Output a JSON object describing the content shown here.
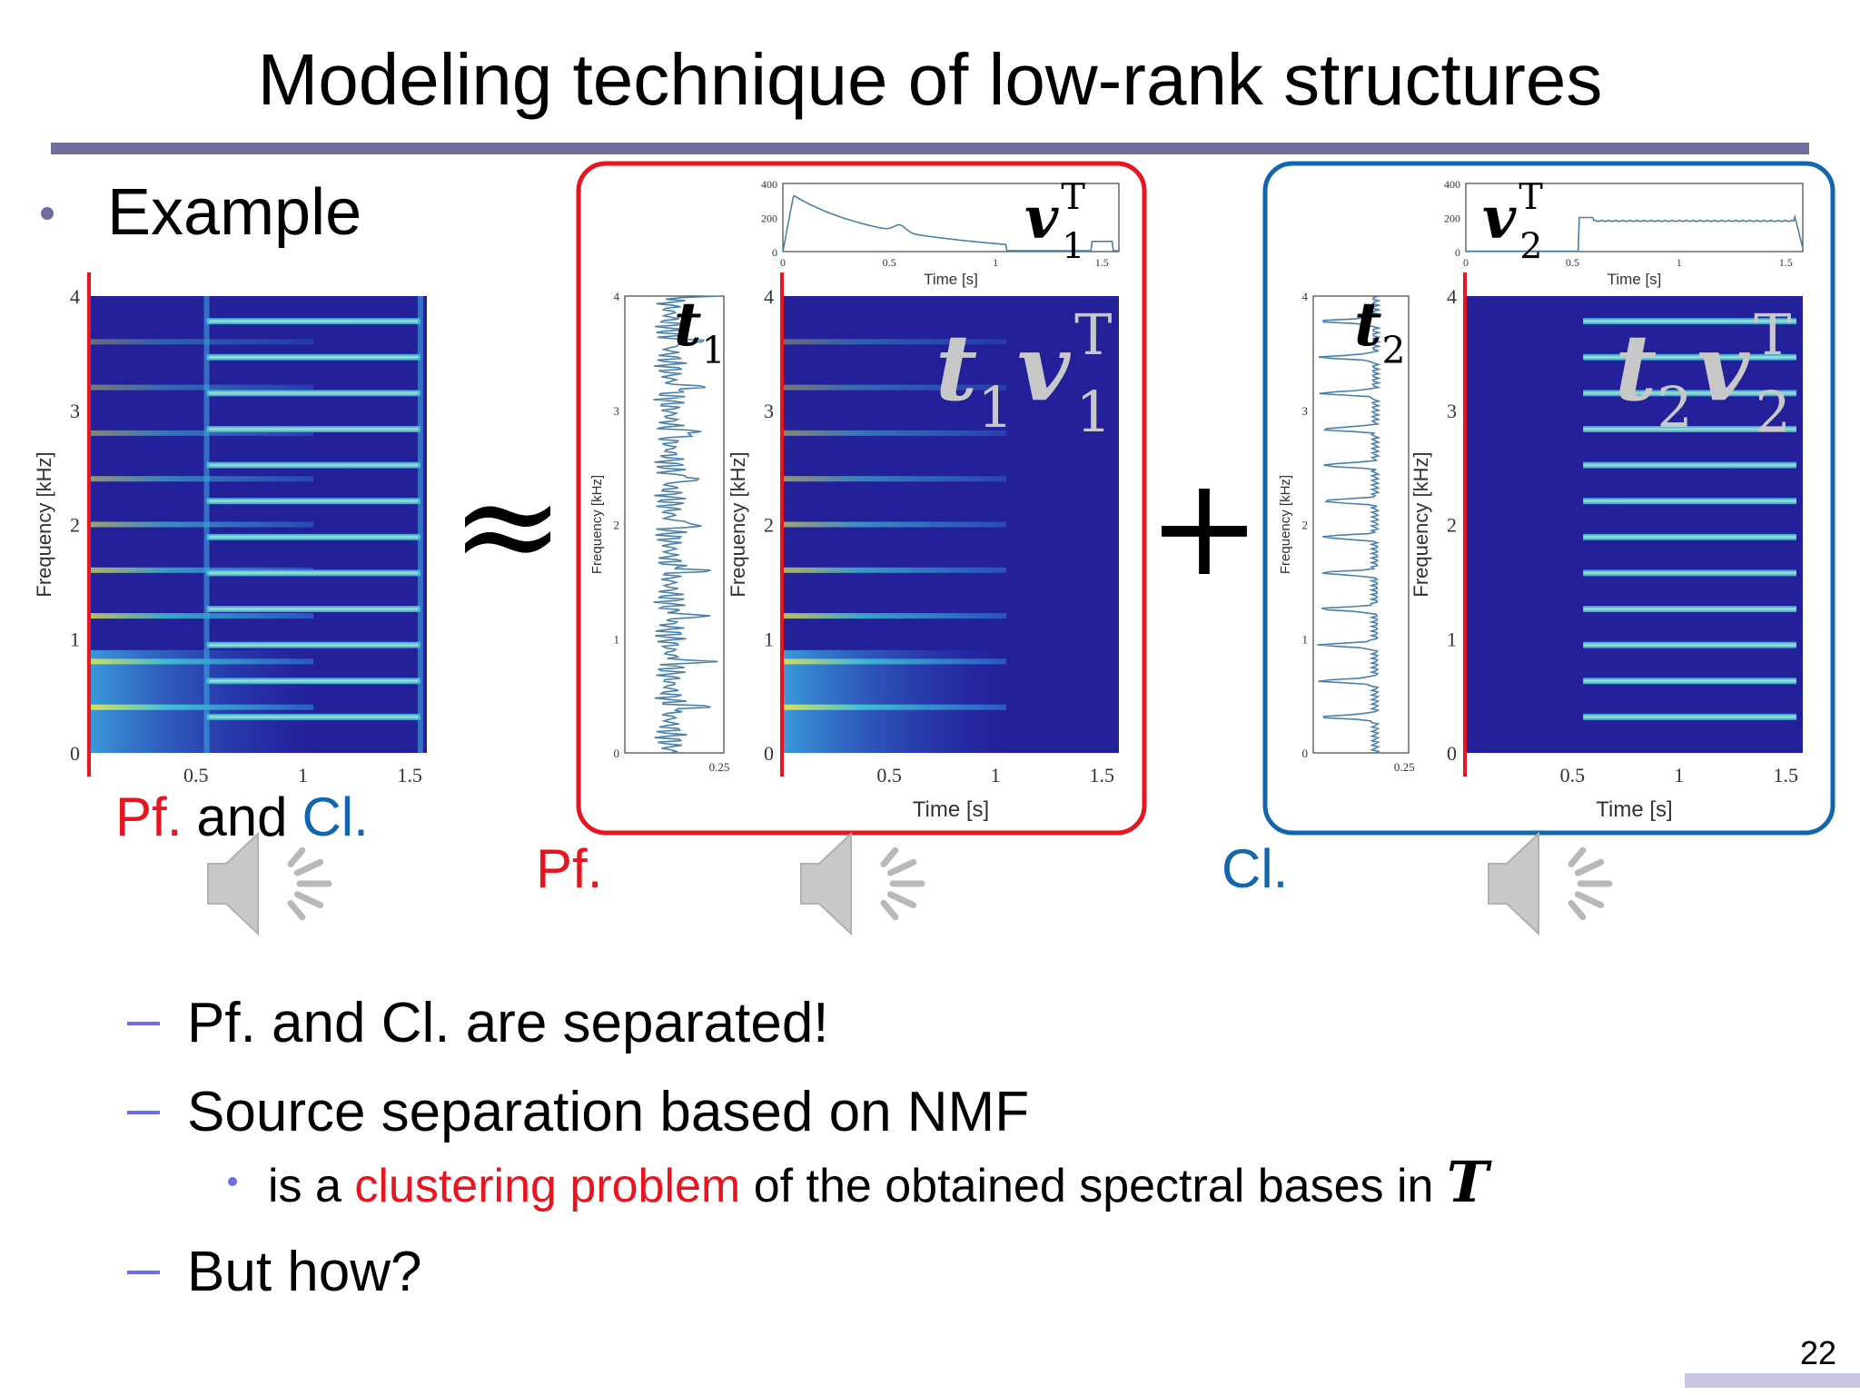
{
  "title": "Modeling technique of low-rank structures",
  "example_bullet": "Example",
  "approx_symbol": "≈",
  "plus_symbol": "+",
  "mixture": {
    "ylabel": "Frequency [kHz]",
    "yticks": [
      0,
      1,
      2,
      3,
      4
    ],
    "xticks": [
      0.5,
      1,
      1.5
    ],
    "caption": [
      {
        "text": "Pf.",
        "color": "#e8141e"
      },
      {
        "text": "and",
        "color": "#000000"
      },
      {
        "text": "Cl.",
        "color": "#1166b0"
      }
    ]
  },
  "sources": [
    {
      "label": "Pf.",
      "color": "#e8141e",
      "basis": {
        "symbol": {
          "base": "t",
          "sub": "1"
        },
        "ylabel": "Frequency [kHz]",
        "yticks": [
          0,
          1,
          2,
          3,
          4
        ],
        "xticks": [
          0.25
        ]
      },
      "activation": {
        "symbol": {
          "base": "v",
          "sub": "1",
          "sup": "T"
        },
        "yticks": [
          0,
          200,
          400
        ],
        "xticks": [
          0,
          0.5,
          1,
          1.5
        ],
        "xlabel": "Time [s]"
      },
      "spectrogram": {
        "symbol": [
          {
            "base": "t",
            "sub": "1"
          },
          {
            "base": "v",
            "sub": "1",
            "sup": "T"
          }
        ],
        "ylabel": "Frequency [kHz]",
        "yticks": [
          0,
          1,
          2,
          3,
          4
        ],
        "xticks": [
          0.5,
          1,
          1.5
        ],
        "xlabel": "Time [s]"
      }
    },
    {
      "label": "Cl.",
      "color": "#1166b0",
      "basis": {
        "symbol": {
          "base": "t",
          "sub": "2"
        },
        "ylabel": "Frequency [kHz]",
        "yticks": [
          0,
          1,
          2,
          3,
          4
        ],
        "xticks": [
          0.25
        ]
      },
      "activation": {
        "symbol": {
          "base": "v",
          "sub": "2",
          "sup": "T"
        },
        "yticks": [
          0,
          200,
          400
        ],
        "xticks": [
          0,
          0.5,
          1,
          1.5
        ],
        "xlabel": "Time [s]"
      },
      "spectrogram": {
        "symbol": [
          {
            "base": "t",
            "sub": "2"
          },
          {
            "base": "v",
            "sub": "2",
            "sup": "T"
          }
        ],
        "ylabel": "Frequency [kHz]",
        "yticks": [
          0,
          1,
          2,
          3,
          4
        ],
        "xticks": [
          0.5,
          1,
          1.5
        ],
        "xlabel": "Time [s]"
      }
    }
  ],
  "bullets": [
    {
      "text": "Pf. and Cl. are separated!"
    },
    {
      "text": "Source separation based on NMF",
      "sub": [
        {
          "parts": [
            {
              "text": "is a "
            },
            {
              "text": "clustering problem",
              "color": "#e8141e"
            },
            {
              "text": " of the obtained spectral bases in "
            },
            {
              "text": "T",
              "math": true
            }
          ]
        }
      ]
    },
    {
      "text": "But how?"
    }
  ],
  "page_number": 22
}
